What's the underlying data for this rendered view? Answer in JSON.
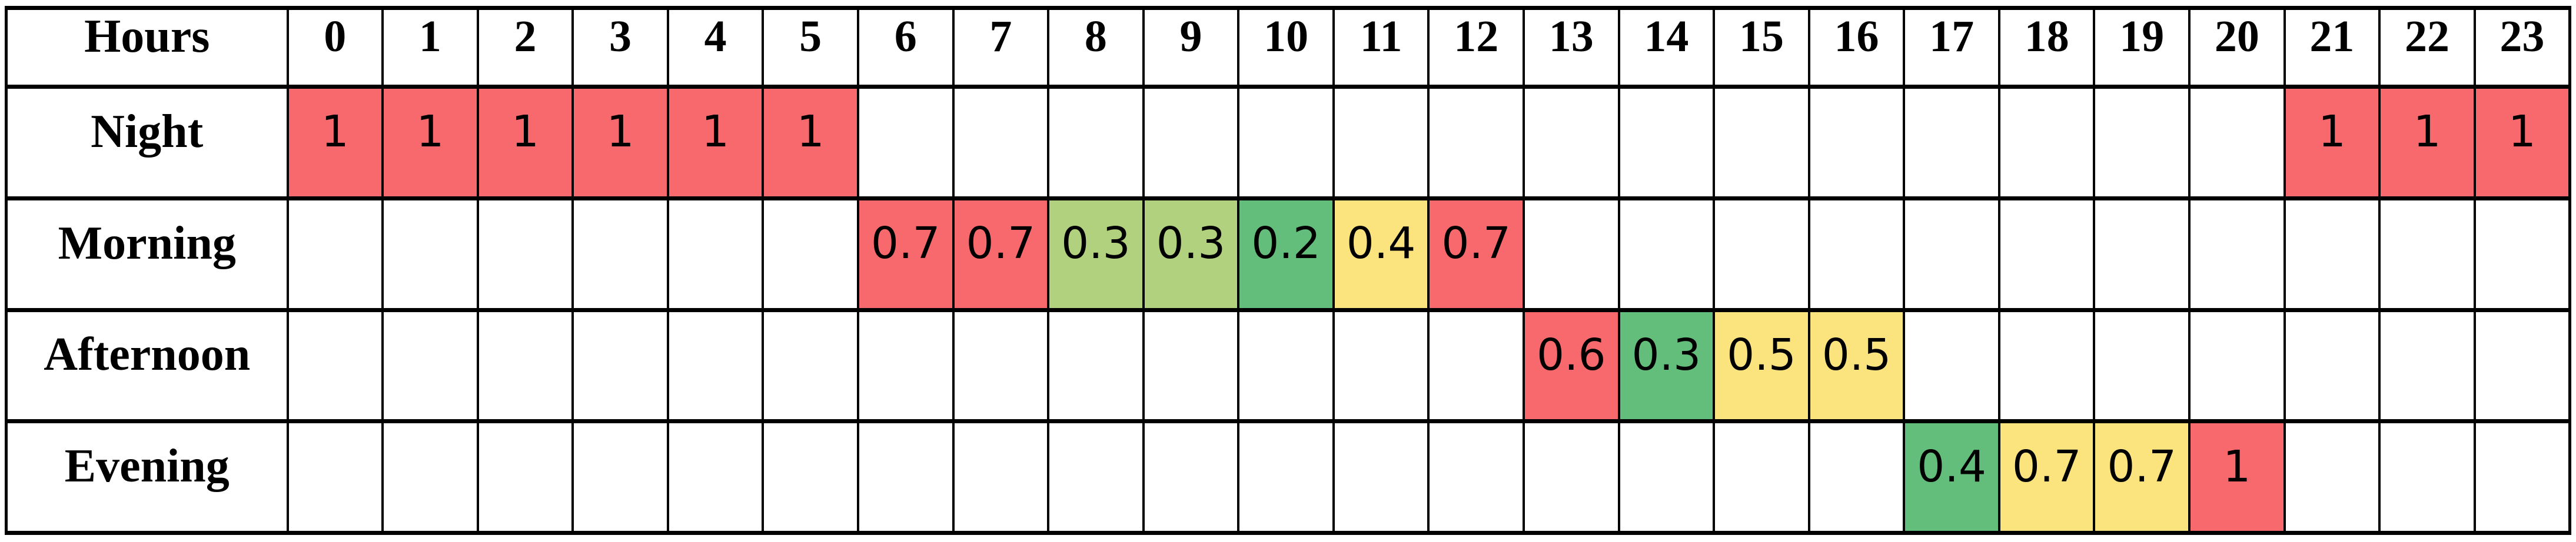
{
  "page": {
    "background": "#ffffff",
    "grid_line_color": "#000000"
  },
  "chart_data": {
    "type": "heatmap",
    "title": "",
    "corner_label": "Hours",
    "columns": [
      "0",
      "1",
      "2",
      "3",
      "4",
      "5",
      "6",
      "7",
      "8",
      "9",
      "10",
      "11",
      "12",
      "13",
      "14",
      "15",
      "16",
      "17",
      "18",
      "19",
      "20",
      "21",
      "22",
      "23"
    ],
    "row_labels": [
      "Night",
      "Morning",
      "Afternoon",
      "Evening"
    ],
    "rows": [
      {
        "label": "Night",
        "cells": [
          {
            "hour": 0,
            "value": "1",
            "color": "red"
          },
          {
            "hour": 1,
            "value": "1",
            "color": "red"
          },
          {
            "hour": 2,
            "value": "1",
            "color": "red"
          },
          {
            "hour": 3,
            "value": "1",
            "color": "red"
          },
          {
            "hour": 4,
            "value": "1",
            "color": "red"
          },
          {
            "hour": 5,
            "value": "1",
            "color": "red"
          },
          {
            "hour": 21,
            "value": "1",
            "color": "red"
          },
          {
            "hour": 22,
            "value": "1",
            "color": "red"
          },
          {
            "hour": 23,
            "value": "1",
            "color": "red"
          }
        ]
      },
      {
        "label": "Morning",
        "cells": [
          {
            "hour": 6,
            "value": "0.7",
            "color": "red"
          },
          {
            "hour": 7,
            "value": "0.7",
            "color": "red"
          },
          {
            "hour": 8,
            "value": "0.3",
            "color": "light_green"
          },
          {
            "hour": 9,
            "value": "0.3",
            "color": "light_green"
          },
          {
            "hour": 10,
            "value": "0.2",
            "color": "green"
          },
          {
            "hour": 11,
            "value": "0.4",
            "color": "yellow"
          },
          {
            "hour": 12,
            "value": "0.7",
            "color": "red"
          }
        ]
      },
      {
        "label": "Afternoon",
        "cells": [
          {
            "hour": 13,
            "value": "0.6",
            "color": "red"
          },
          {
            "hour": 14,
            "value": "0.3",
            "color": "green"
          },
          {
            "hour": 15,
            "value": "0.5",
            "color": "yellow"
          },
          {
            "hour": 16,
            "value": "0.5",
            "color": "yellow"
          }
        ]
      },
      {
        "label": "Evening",
        "cells": [
          {
            "hour": 17,
            "value": "0.4",
            "color": "green"
          },
          {
            "hour": 18,
            "value": "0.7",
            "color": "yellow"
          },
          {
            "hour": 19,
            "value": "0.7",
            "color": "yellow"
          },
          {
            "hour": 20,
            "value": "1",
            "color": "red"
          }
        ]
      }
    ],
    "palette": {
      "red": "#F7696C",
      "yellow": "#FBE37E",
      "light_green": "#B1D17E",
      "green": "#63BE7B"
    },
    "legend_position": "none",
    "grid": true
  }
}
